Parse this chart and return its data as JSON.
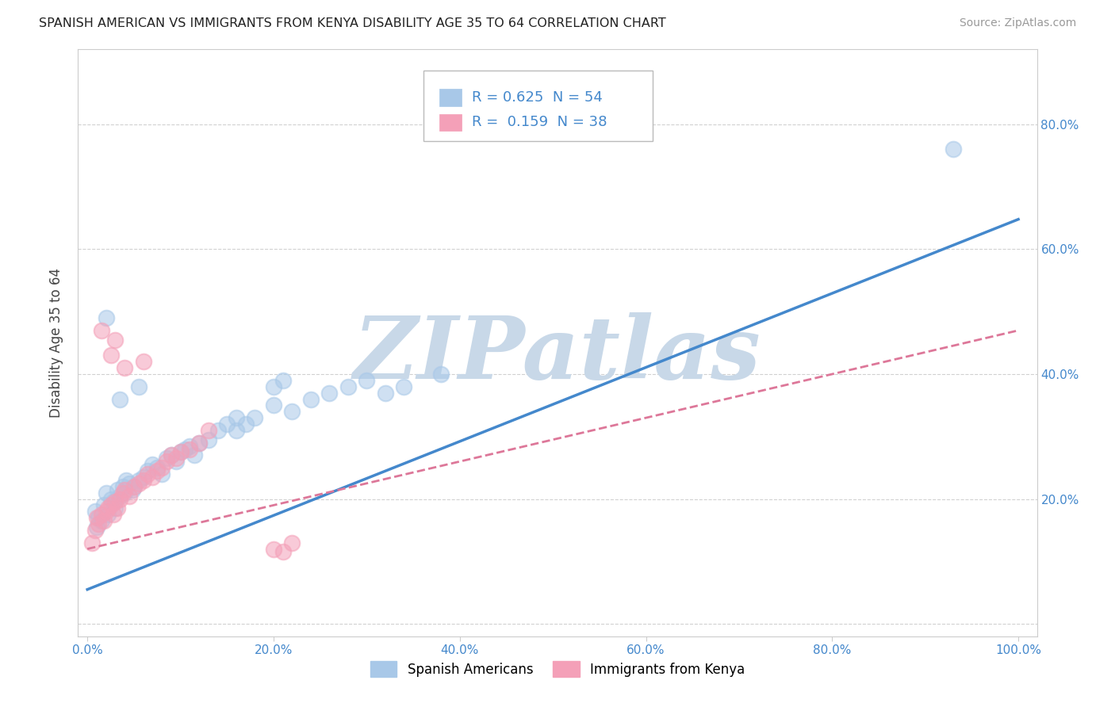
{
  "title": "SPANISH AMERICAN VS IMMIGRANTS FROM KENYA DISABILITY AGE 35 TO 64 CORRELATION CHART",
  "source": "Source: ZipAtlas.com",
  "xlabel": "",
  "ylabel": "Disability Age 35 to 64",
  "xlim": [
    -0.01,
    1.02
  ],
  "ylim": [
    -0.02,
    0.92
  ],
  "xticks": [
    0.0,
    0.2,
    0.4,
    0.6,
    0.8,
    1.0
  ],
  "yticks": [
    0.0,
    0.2,
    0.4,
    0.6,
    0.8
  ],
  "xtick_labels": [
    "0.0%",
    "20.0%",
    "40.0%",
    "60.0%",
    "80.0%",
    "100.0%"
  ],
  "ytick_labels_right": [
    "",
    "20.0%",
    "40.0%",
    "60.0%",
    "80.0%"
  ],
  "r_blue": 0.625,
  "n_blue": 54,
  "r_pink": 0.159,
  "n_pink": 38,
  "blue_color": "#a8c8e8",
  "pink_color": "#f4a0b8",
  "blue_line_color": "#4488cc",
  "pink_line_color": "#dd7799",
  "watermark": "ZIPatlas",
  "watermark_color": "#c8d8e8",
  "blue_scatter_x": [
    0.008,
    0.01,
    0.012,
    0.015,
    0.018,
    0.02,
    0.022,
    0.025,
    0.028,
    0.03,
    0.032,
    0.035,
    0.038,
    0.04,
    0.042,
    0.045,
    0.048,
    0.05,
    0.055,
    0.06,
    0.065,
    0.07,
    0.075,
    0.08,
    0.085,
    0.09,
    0.095,
    0.1,
    0.105,
    0.11,
    0.115,
    0.12,
    0.13,
    0.14,
    0.15,
    0.16,
    0.17,
    0.18,
    0.2,
    0.22,
    0.24,
    0.26,
    0.28,
    0.3,
    0.32,
    0.34,
    0.38,
    0.02,
    0.035,
    0.055,
    0.16,
    0.2,
    0.21,
    0.93
  ],
  "blue_scatter_y": [
    0.18,
    0.155,
    0.17,
    0.165,
    0.19,
    0.21,
    0.175,
    0.2,
    0.195,
    0.185,
    0.215,
    0.205,
    0.22,
    0.21,
    0.23,
    0.225,
    0.215,
    0.22,
    0.23,
    0.235,
    0.245,
    0.255,
    0.25,
    0.24,
    0.265,
    0.27,
    0.26,
    0.275,
    0.28,
    0.285,
    0.27,
    0.29,
    0.295,
    0.31,
    0.32,
    0.31,
    0.32,
    0.33,
    0.35,
    0.34,
    0.36,
    0.37,
    0.38,
    0.39,
    0.37,
    0.38,
    0.4,
    0.49,
    0.36,
    0.38,
    0.33,
    0.38,
    0.39,
    0.76
  ],
  "pink_scatter_x": [
    0.005,
    0.008,
    0.01,
    0.012,
    0.015,
    0.018,
    0.02,
    0.022,
    0.025,
    0.028,
    0.03,
    0.032,
    0.035,
    0.038,
    0.04,
    0.045,
    0.05,
    0.055,
    0.06,
    0.065,
    0.07,
    0.075,
    0.08,
    0.085,
    0.09,
    0.095,
    0.1,
    0.11,
    0.12,
    0.13,
    0.025,
    0.04,
    0.06,
    0.2,
    0.21,
    0.22,
    0.015,
    0.03
  ],
  "pink_scatter_y": [
    0.13,
    0.15,
    0.17,
    0.16,
    0.175,
    0.165,
    0.18,
    0.185,
    0.19,
    0.175,
    0.195,
    0.185,
    0.2,
    0.21,
    0.215,
    0.205,
    0.22,
    0.225,
    0.23,
    0.24,
    0.235,
    0.245,
    0.25,
    0.26,
    0.27,
    0.265,
    0.275,
    0.28,
    0.29,
    0.31,
    0.43,
    0.41,
    0.42,
    0.12,
    0.115,
    0.13,
    0.47,
    0.455
  ],
  "legend_label_blue": "Spanish Americans",
  "legend_label_pink": "Immigrants from Kenya",
  "blue_line_x0": 0.0,
  "blue_line_x1": 1.0,
  "blue_line_y0": 0.055,
  "blue_line_y1": 0.648,
  "pink_line_x0": 0.0,
  "pink_line_x1": 1.0,
  "pink_line_y0": 0.12,
  "pink_line_y1": 0.47,
  "grid_color": "#cccccc",
  "background_color": "#ffffff",
  "tick_color": "#4488cc"
}
